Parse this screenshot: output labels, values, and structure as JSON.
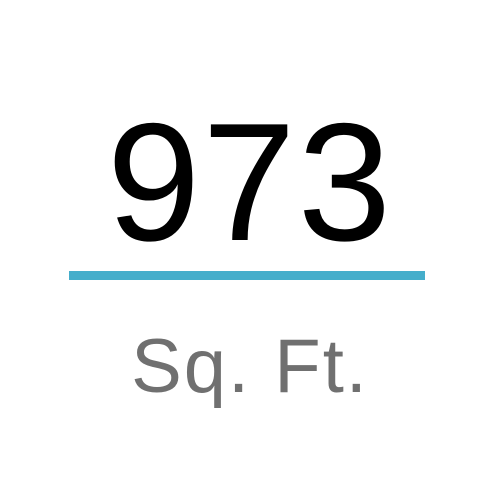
{
  "stat": {
    "value": "973",
    "unit": "Sq. Ft."
  },
  "colors": {
    "value_text": "#000000",
    "divider": "#45aecb",
    "unit_text": "#707070"
  }
}
